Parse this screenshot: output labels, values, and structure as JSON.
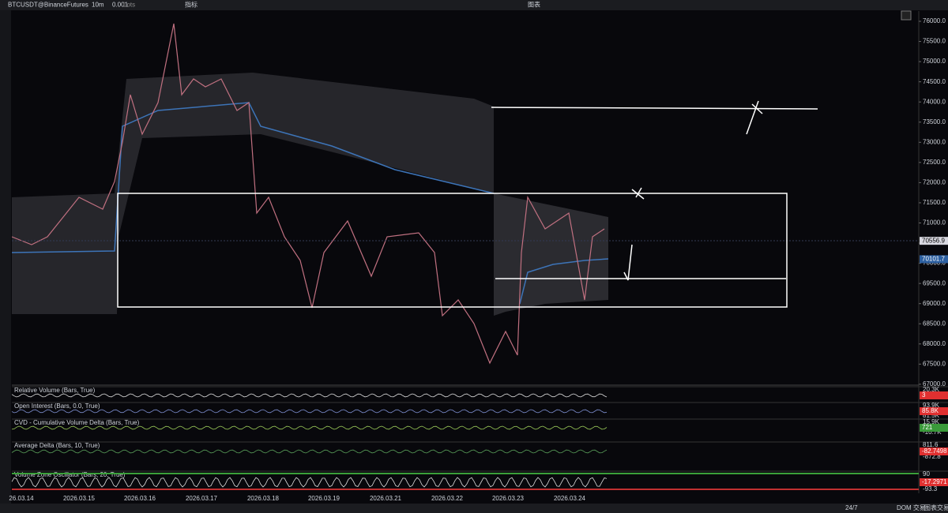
{
  "toolbar": {
    "symbol": "BTCUSDT@BinanceFutures",
    "interval": "10m",
    "quantity": "0.001",
    "quantity_unit": "Lots",
    "indicators": "指标",
    "window_title": "图表"
  },
  "price_axis": {
    "ticks": [
      {
        "value": 76000,
        "label": "76000.0"
      },
      {
        "value": 75500,
        "label": "75500.0"
      },
      {
        "value": 75000,
        "label": "75000.0"
      },
      {
        "value": 74500,
        "label": "74500.0"
      },
      {
        "value": 74000,
        "label": "74000.0"
      },
      {
        "value": 73500,
        "label": "73500.0"
      },
      {
        "value": 73000,
        "label": "73000.0"
      },
      {
        "value": 72500,
        "label": "72500.0"
      },
      {
        "value": 72000,
        "label": "72000.0"
      },
      {
        "value": 71500,
        "label": "71500.0"
      },
      {
        "value": 71000,
        "label": "71000.0"
      },
      {
        "value": 70500,
        "label": "70500.0"
      },
      {
        "value": 70000,
        "label": "70000.0"
      },
      {
        "value": 69500,
        "label": "69500.0"
      },
      {
        "value": 69000,
        "label": "69000.0"
      },
      {
        "value": 68500,
        "label": "68500.0"
      },
      {
        "value": 68000,
        "label": "68000.0"
      },
      {
        "value": 67500,
        "label": "67500.0"
      },
      {
        "value": 67000,
        "label": "67000.0"
      }
    ],
    "last_price": 70556.9,
    "vwap_price": 70101.7
  },
  "panels": [
    {
      "title": "Relative Volume (Bars, True)",
      "labels": [
        "20.3K"
      ],
      "badge": "3",
      "badge_color": "#e03030"
    },
    {
      "title": "Open Interest (Bars, 0.0, True)",
      "labels": [
        "93.9K",
        "81.5K"
      ],
      "badge": "85.8K",
      "badge_color": "#e03030"
    },
    {
      "title": "CVD - Cumulative Volume Delta (Bars, True)",
      "labels": [
        "15.9K",
        "-10.7K"
      ],
      "badge": "721",
      "badge_color": "#3a9a3a"
    },
    {
      "title": "Average Delta (Bars, 10, True)",
      "labels": [
        "811.6",
        "-872.8"
      ],
      "badge": "-82.7498",
      "badge_color": "#e03030"
    },
    {
      "title": "Volume Zone Oscillator (Bars, 20, True)",
      "labels": [
        "90",
        "-93.3"
      ],
      "badge": "-17.2971",
      "badge_color": "#e03030"
    }
  ],
  "time_axis": [
    "26.03.14",
    "2026.03.15",
    "2026.03.16",
    "2026.03.17",
    "2026.03.18",
    "2026.03.19",
    "2026.03.21",
    "2026.03.22",
    "2026.03.23",
    "2026.03.24"
  ],
  "status_bar": {
    "session": "24/7",
    "dom": "DOM 交易",
    "chart_trading": "图表交易"
  }
}
